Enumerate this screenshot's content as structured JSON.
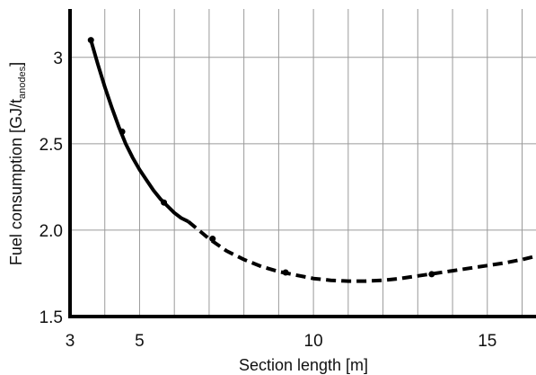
{
  "chart_data": {
    "type": "line",
    "xlabel": "Section length [m]",
    "ylabel": {
      "main": "Fuel consumption [GJ/t",
      "subscript": "anodes",
      "close": "]"
    },
    "xlim": [
      3,
      16.4
    ],
    "ylim": [
      1.5,
      3.28
    ],
    "x_ticks": [
      3,
      5,
      10,
      15
    ],
    "y_ticks": [
      1.5,
      2.0,
      2.5,
      3
    ],
    "y_tick_labels": [
      "1.5",
      "2.0",
      "2.5",
      "3"
    ],
    "grid_x": [
      3,
      4,
      5,
      6,
      7,
      8,
      9,
      10,
      11,
      12,
      13,
      14,
      15,
      16
    ],
    "grid_y": [
      2.0,
      2.5,
      3
    ],
    "grid": true,
    "series": [
      {
        "style": "solid",
        "x": [
          3.6,
          3.8,
          4.0,
          4.2,
          4.4,
          4.6,
          4.8,
          5.0,
          5.2,
          5.4,
          5.6,
          5.8,
          6.0,
          6.2,
          6.4
        ],
        "y": [
          3.1,
          2.96,
          2.83,
          2.71,
          2.6,
          2.5,
          2.42,
          2.35,
          2.29,
          2.23,
          2.18,
          2.14,
          2.1,
          2.07,
          2.05
        ]
      },
      {
        "style": "dashed",
        "x": [
          6.4,
          7.0,
          7.5,
          8.0,
          8.5,
          9.0,
          9.5,
          10.0,
          10.5,
          11.0,
          11.5,
          12.0,
          12.5,
          13.0,
          13.5,
          14.0,
          14.5,
          15.0,
          15.5,
          16.0,
          16.4
        ],
        "y": [
          2.05,
          1.95,
          1.88,
          1.83,
          1.79,
          1.76,
          1.74,
          1.72,
          1.71,
          1.705,
          1.705,
          1.71,
          1.72,
          1.735,
          1.75,
          1.765,
          1.78,
          1.795,
          1.81,
          1.83,
          1.85
        ]
      }
    ],
    "markers": [
      {
        "x": 3.6,
        "y": 3.1
      },
      {
        "x": 4.5,
        "y": 2.57
      },
      {
        "x": 5.7,
        "y": 2.16
      },
      {
        "x": 7.1,
        "y": 1.95
      },
      {
        "x": 9.2,
        "y": 1.755
      },
      {
        "x": 13.4,
        "y": 1.745
      }
    ],
    "colors": {
      "line": "#000000",
      "grid": "#9a9a9a",
      "background": "#ffffff"
    }
  }
}
